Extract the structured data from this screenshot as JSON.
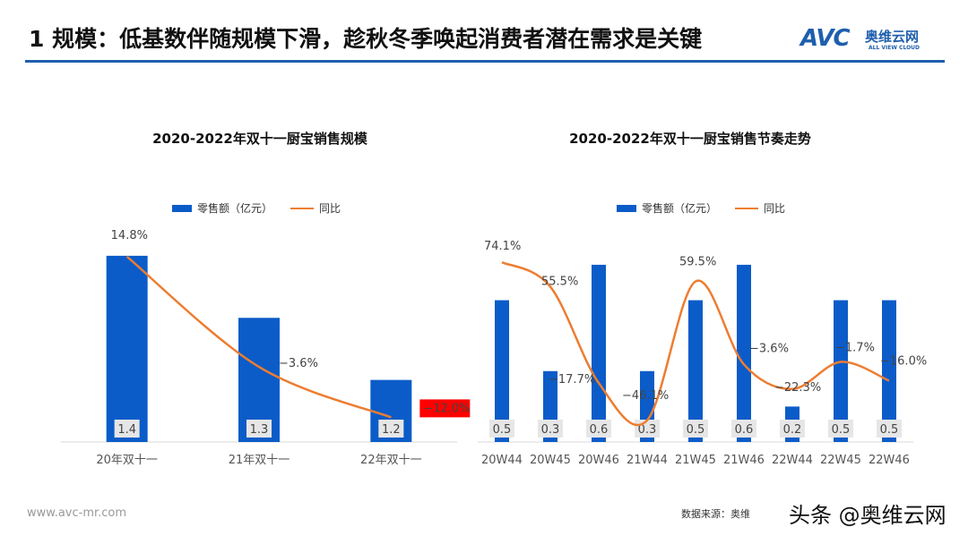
{
  "header": {
    "title": "1 规模：低基数伴随规模下滑，趁秋冬季唤起消费者潜在需求是关键",
    "logo_mark": "AVC",
    "logo_cn": "奥维云网",
    "logo_en": "ALL VIEW CLOUD"
  },
  "legend": {
    "bar": "零售额（亿元）",
    "line": "同比"
  },
  "footer": {
    "url": "www.avc-mr.com",
    "source": "数据来源：奥维",
    "watermark": "头条 @奥维云网"
  },
  "colors": {
    "bar": "#0b5cc8",
    "line": "#ed7d31",
    "highlight": "#ff0000"
  },
  "chart_data": [
    {
      "type": "bar+line",
      "title": "2020-2022年双十一厨宝销售规模",
      "categories": [
        "20年双十一",
        "21年双十一",
        "22年双十一"
      ],
      "series": [
        {
          "name": "零售额（亿元）",
          "values": [
            1.4,
            1.3,
            1.2
          ],
          "labels": [
            "1.4",
            "1.3",
            "1.2"
          ]
        },
        {
          "name": "同比",
          "values": [
            14.8,
            -3.6,
            -12.0
          ],
          "labels": [
            "14.8%",
            "-3.6%",
            "-12.0%"
          ]
        }
      ],
      "highlight_label": "-12.0%",
      "grid": false
    },
    {
      "type": "bar+line",
      "title": "2020-2022年双十一厨宝销售节奏走势",
      "categories": [
        "20W44",
        "20W45",
        "20W46",
        "21W44",
        "21W45",
        "21W46",
        "22W44",
        "22W45",
        "22W46"
      ],
      "series": [
        {
          "name": "零售额（亿元）",
          "values": [
            0.5,
            0.3,
            0.6,
            0.3,
            0.5,
            0.6,
            0.2,
            0.5,
            0.5
          ],
          "labels": [
            "0.5",
            "0.3",
            "0.6",
            "0.3",
            "0.5",
            "0.6",
            "0.2",
            "0.5",
            "0.5"
          ]
        },
        {
          "name": "同比",
          "values": [
            74.1,
            55.5,
            -17.7,
            -46.1,
            59.5,
            -3.6,
            -22.3,
            -1.7,
            -16.0
          ],
          "labels": [
            "74.1%",
            "55.5%",
            "-17.7%",
            "-46.1%",
            "59.5%",
            "-3.6%",
            "-22.3%",
            "-1.7%",
            "-16.0%"
          ]
        }
      ],
      "grid": false
    }
  ]
}
